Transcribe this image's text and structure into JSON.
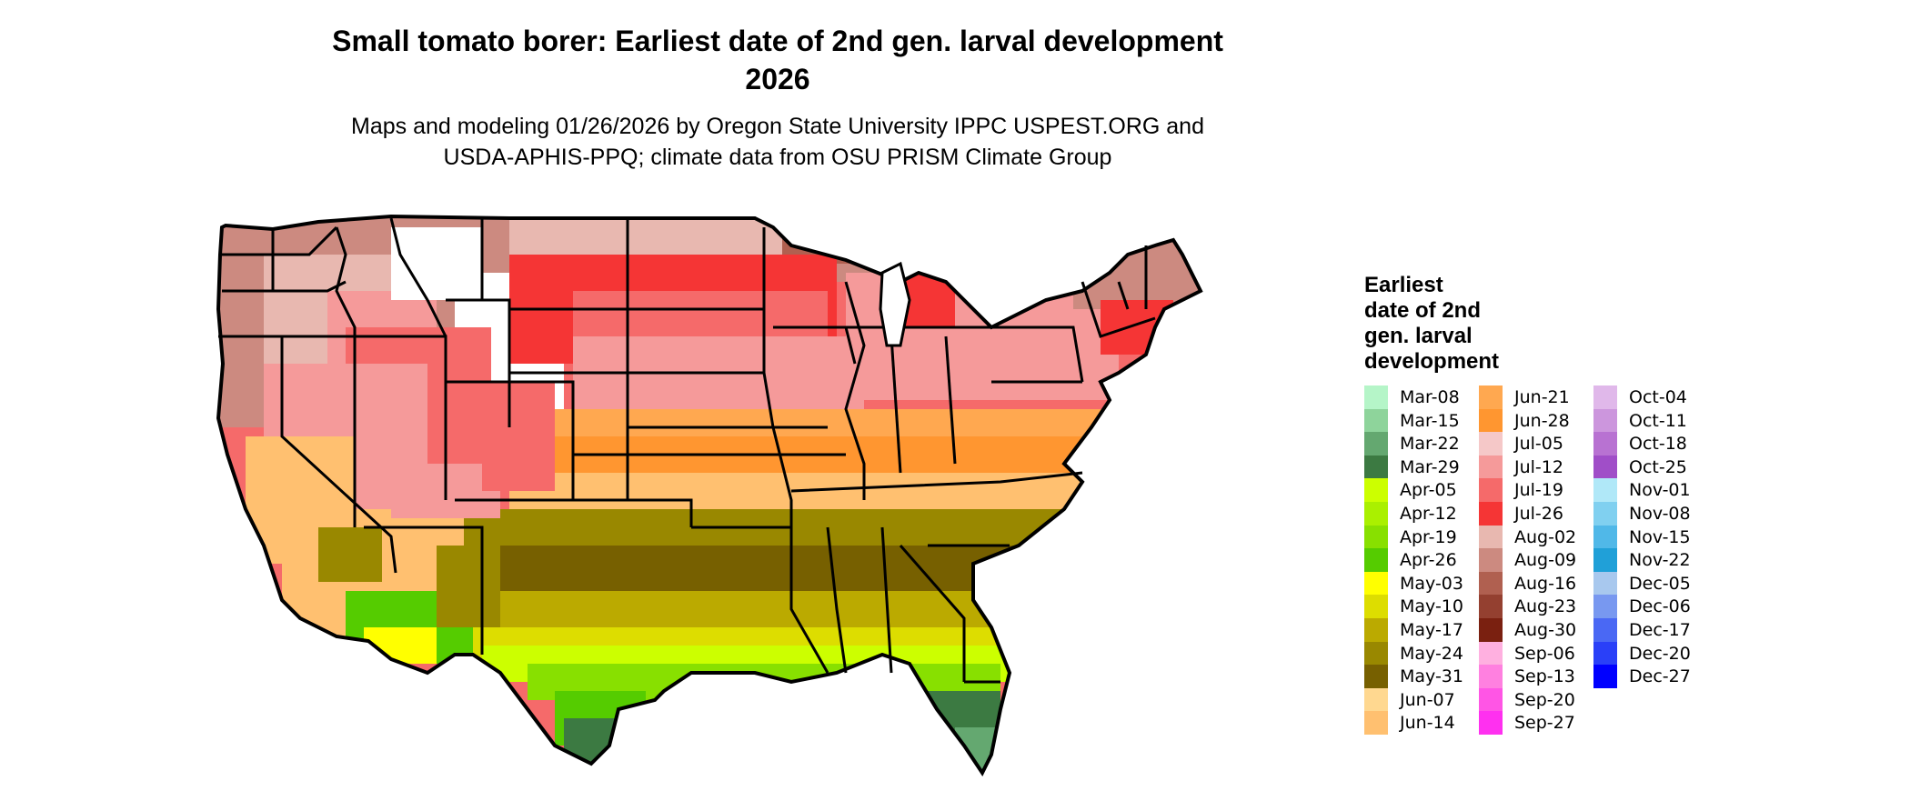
{
  "title": {
    "line1": "Small tomato borer: Earliest date of 2nd gen. larval development",
    "line2": "2026"
  },
  "subtitle": {
    "line1": "Maps and modeling 01/26/2026 by Oregon State University IPPC USPEST.ORG and",
    "line2": "USDA-APHIS-PPQ; climate data from OSU PRISM Climate Group"
  },
  "legend": {
    "title": "Earliest\ndate of 2nd\ngen. larval\ndevelopment",
    "items": [
      {
        "label": "Mar-08",
        "color": "#b5f5c8"
      },
      {
        "label": "Mar-15",
        "color": "#8ed49b"
      },
      {
        "label": "Mar-22",
        "color": "#64a870"
      },
      {
        "label": "Mar-29",
        "color": "#3c7a42"
      },
      {
        "label": "Apr-05",
        "color": "#ccff00"
      },
      {
        "label": "Apr-12",
        "color": "#aaf000"
      },
      {
        "label": "Apr-19",
        "color": "#88e000"
      },
      {
        "label": "Apr-26",
        "color": "#55cc00"
      },
      {
        "label": "May-03",
        "color": "#ffff00"
      },
      {
        "label": "May-10",
        "color": "#dddd00"
      },
      {
        "label": "May-17",
        "color": "#bbaa00"
      },
      {
        "label": "May-24",
        "color": "#998800"
      },
      {
        "label": "May-31",
        "color": "#776000"
      },
      {
        "label": "Jun-07",
        "color": "#ffd890"
      },
      {
        "label": "Jun-14",
        "color": "#ffc070"
      },
      {
        "label": "Jun-21",
        "color": "#ffa850"
      },
      {
        "label": "Jun-28",
        "color": "#ff9630"
      },
      {
        "label": "Jul-05",
        "color": "#f5c8c8"
      },
      {
        "label": "Jul-12",
        "color": "#f59a9a"
      },
      {
        "label": "Jul-19",
        "color": "#f56a6a"
      },
      {
        "label": "Jul-26",
        "color": "#f53535"
      },
      {
        "label": "Aug-02",
        "color": "#e8b8b0"
      },
      {
        "label": "Aug-09",
        "color": "#cc8a80"
      },
      {
        "label": "Aug-16",
        "color": "#b06050"
      },
      {
        "label": "Aug-23",
        "color": "#944030"
      },
      {
        "label": "Aug-30",
        "color": "#7a2010"
      },
      {
        "label": "Sep-06",
        "color": "#ffb0e0"
      },
      {
        "label": "Sep-13",
        "color": "#ff80e0"
      },
      {
        "label": "Sep-20",
        "color": "#ff55e5"
      },
      {
        "label": "Sep-27",
        "color": "#ff30f0"
      },
      {
        "label": "Oct-04",
        "color": "#e0b8ea"
      },
      {
        "label": "Oct-11",
        "color": "#cc96dd"
      },
      {
        "label": "Oct-18",
        "color": "#b872d2"
      },
      {
        "label": "Oct-25",
        "color": "#a04ec8"
      },
      {
        "label": "Nov-01",
        "color": "#b0e8f8"
      },
      {
        "label": "Nov-08",
        "color": "#80d0f0"
      },
      {
        "label": "Nov-15",
        "color": "#50b8e8"
      },
      {
        "label": "Nov-22",
        "color": "#20a0d8"
      },
      {
        "label": "Dec-05",
        "color": "#a8c8ee"
      },
      {
        "label": "Dec-06",
        "color": "#7898f0"
      },
      {
        "label": "Dec-17",
        "color": "#4a68f4"
      },
      {
        "label": "Dec-20",
        "color": "#2a40f8"
      },
      {
        "label": "Dec-27",
        "color": "#0000ff"
      }
    ]
  }
}
